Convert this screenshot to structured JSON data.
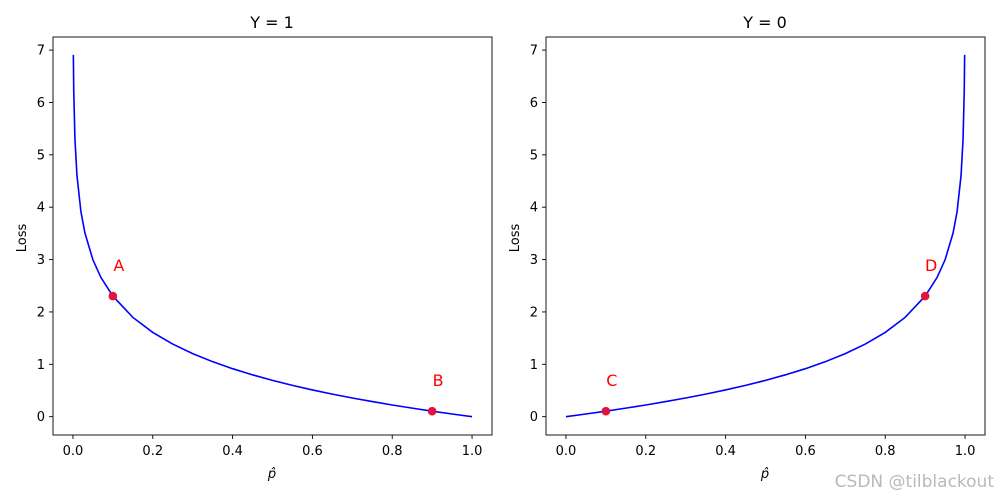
{
  "chart_data": [
    {
      "type": "line",
      "title": "Y = 1",
      "xlabel": "p̂",
      "ylabel": "Loss",
      "xlim": [
        -0.05,
        1.05
      ],
      "ylim": [
        -0.35,
        7.25
      ],
      "xticks": [
        0.0,
        0.2,
        0.4,
        0.6,
        0.8,
        1.0
      ],
      "xtick_labels": [
        "0.0",
        "0.2",
        "0.4",
        "0.6",
        "0.8",
        "1.0"
      ],
      "yticks": [
        0,
        1,
        2,
        3,
        4,
        5,
        6,
        7
      ],
      "ytick_labels": [
        "0",
        "1",
        "2",
        "3",
        "4",
        "5",
        "6",
        "7"
      ],
      "series": [
        {
          "color": "#0000ff",
          "x": [
            0.001,
            0.002,
            0.005,
            0.01,
            0.02,
            0.03,
            0.05,
            0.07,
            0.1,
            0.15,
            0.2,
            0.25,
            0.3,
            0.35,
            0.4,
            0.45,
            0.5,
            0.55,
            0.6,
            0.65,
            0.7,
            0.75,
            0.8,
            0.85,
            0.9,
            0.95,
            1.0
          ],
          "y": [
            6.908,
            6.215,
            5.298,
            4.605,
            3.912,
            3.507,
            2.996,
            2.659,
            2.303,
            1.897,
            1.609,
            1.386,
            1.204,
            1.05,
            0.916,
            0.799,
            0.693,
            0.598,
            0.511,
            0.431,
            0.357,
            0.288,
            0.223,
            0.163,
            0.105,
            0.051,
            0.0
          ]
        }
      ],
      "points": [
        {
          "label": "A",
          "x": 0.1,
          "y": 2.303
        },
        {
          "label": "B",
          "x": 0.9,
          "y": 0.105
        }
      ],
      "point_color": "#e0143c",
      "label_color": "#ff0000"
    },
    {
      "type": "line",
      "title": "Y = 0",
      "xlabel": "p̂",
      "ylabel": "Loss",
      "xlim": [
        -0.05,
        1.05
      ],
      "ylim": [
        -0.35,
        7.25
      ],
      "xticks": [
        0.0,
        0.2,
        0.4,
        0.6,
        0.8,
        1.0
      ],
      "xtick_labels": [
        "0.0",
        "0.2",
        "0.4",
        "0.6",
        "0.8",
        "1.0"
      ],
      "yticks": [
        0,
        1,
        2,
        3,
        4,
        5,
        6,
        7
      ],
      "ytick_labels": [
        "0",
        "1",
        "2",
        "3",
        "4",
        "5",
        "6",
        "7"
      ],
      "series": [
        {
          "color": "#0000ff",
          "x": [
            0.0,
            0.05,
            0.1,
            0.15,
            0.2,
            0.25,
            0.3,
            0.35,
            0.4,
            0.45,
            0.5,
            0.55,
            0.6,
            0.65,
            0.7,
            0.75,
            0.8,
            0.85,
            0.9,
            0.93,
            0.95,
            0.97,
            0.98,
            0.99,
            0.995,
            0.998,
            0.999
          ],
          "y": [
            0.0,
            0.051,
            0.105,
            0.163,
            0.223,
            0.288,
            0.357,
            0.431,
            0.511,
            0.598,
            0.693,
            0.799,
            0.916,
            1.05,
            1.204,
            1.386,
            1.609,
            1.897,
            2.303,
            2.659,
            2.996,
            3.507,
            3.912,
            4.605,
            5.298,
            6.215,
            6.908
          ]
        }
      ],
      "points": [
        {
          "label": "C",
          "x": 0.1,
          "y": 0.105
        },
        {
          "label": "D",
          "x": 0.9,
          "y": 2.303
        }
      ],
      "point_color": "#e0143c",
      "label_color": "#ff0000"
    }
  ],
  "watermark": "CSDN @tilblackout"
}
